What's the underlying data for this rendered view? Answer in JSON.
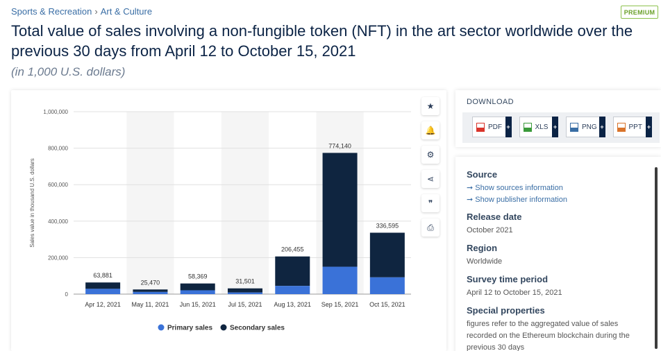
{
  "breadcrumb": {
    "item1": "Sports & Recreation",
    "sep": "›",
    "item2": "Art & Culture"
  },
  "badge": "PREMIUM",
  "title": "Total value of sales involving a non-fungible token (NFT) in the art sector worldwide over the previous 30 days from April 12 to October 15, 2021",
  "subtitle": "(in 1,000 U.S. dollars)",
  "toolbar": {
    "icons": [
      "star-icon",
      "bell-icon",
      "gear-icon",
      "share-icon",
      "quote-icon",
      "print-icon"
    ],
    "glyphs": [
      "★",
      "🔔",
      "⚙",
      "⋖",
      "❞",
      "⎙"
    ]
  },
  "download": {
    "title": "DOWNLOAD",
    "buttons": [
      {
        "label": "PDF",
        "color": "#d9342b"
      },
      {
        "label": "XLS",
        "color": "#3a9a3a"
      },
      {
        "label": "PNG",
        "color": "#3a6ea5"
      },
      {
        "label": "PPT",
        "color": "#d9742b"
      }
    ],
    "plus": "+"
  },
  "info": {
    "source_h": "Source",
    "source_link1": "➞ Show sources information",
    "source_link2": "➞ Show publisher information",
    "release_h": "Release date",
    "release_v": "October 2021",
    "region_h": "Region",
    "region_v": "Worldwide",
    "survey_h": "Survey time period",
    "survey_v": "April 12 to October 15, 2021",
    "special_h": "Special properties",
    "special_v": "figures refer to the aggregated value of sales recorded on the Ethereum blockchain during the previous 30 days"
  },
  "colors": {
    "primary": "#3a72d8",
    "secondary": "#0f2540",
    "alt_band": "#f5f5f5"
  },
  "chart_data": {
    "type": "bar",
    "stacked": true,
    "ylabel": "Sales value in thousand U.S. dollars",
    "ylim": [
      0,
      1000000
    ],
    "yticks": [
      0,
      200000,
      400000,
      600000,
      800000,
      1000000
    ],
    "ytick_labels": [
      "0",
      "200,000",
      "400,000",
      "600,000",
      "800,000",
      "1,000,000"
    ],
    "categories": [
      "Apr 12, 2021",
      "May 11, 2021",
      "Jun 15, 2021",
      "Jul 15, 2021",
      "Aug 13, 2021",
      "Sep 15, 2021",
      "Oct 15, 2021"
    ],
    "series": [
      {
        "name": "Primary sales",
        "values": [
          29000,
          12000,
          21000,
          9000,
          45000,
          150000,
          92000
        ]
      },
      {
        "name": "Secondary sales",
        "values": [
          34881,
          13470,
          37369,
          22501,
          161455,
          624140,
          244595
        ]
      }
    ],
    "totals_labels": [
      "63,881",
      "25,470",
      "58,369",
      "31,501",
      "206,455",
      "774,140",
      "336,595"
    ],
    "legend": "bottom"
  }
}
